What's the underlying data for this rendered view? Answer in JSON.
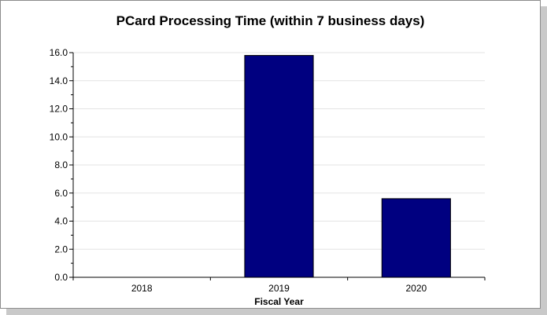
{
  "chart_data": {
    "type": "bar",
    "title": "PCard Processing Time (within 7 business days)",
    "xlabel": "Fiscal Year",
    "ylabel": "",
    "categories": [
      "2018",
      "2019",
      "2020"
    ],
    "values": [
      0,
      15.8,
      5.6
    ],
    "ylim": [
      0,
      16
    ],
    "yticks": [
      "0.0",
      "2.0",
      "4.0",
      "6.0",
      "8.0",
      "10.0",
      "12.0",
      "14.0",
      "16.0"
    ],
    "grid": true,
    "bar_color": "#000080"
  }
}
